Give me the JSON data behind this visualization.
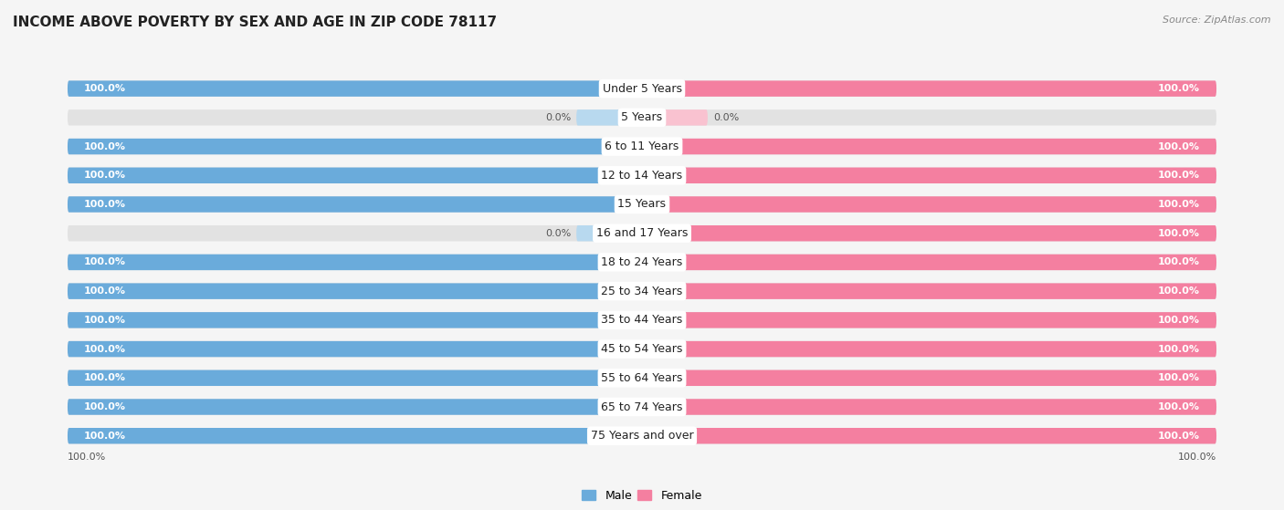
{
  "title": "INCOME ABOVE POVERTY BY SEX AND AGE IN ZIP CODE 78117",
  "source": "Source: ZipAtlas.com",
  "categories": [
    "Under 5 Years",
    "5 Years",
    "6 to 11 Years",
    "12 to 14 Years",
    "15 Years",
    "16 and 17 Years",
    "18 to 24 Years",
    "25 to 34 Years",
    "35 to 44 Years",
    "45 to 54 Years",
    "55 to 64 Years",
    "65 to 74 Years",
    "75 Years and over"
  ],
  "male_values": [
    100.0,
    0.0,
    100.0,
    100.0,
    100.0,
    0.0,
    100.0,
    100.0,
    100.0,
    100.0,
    100.0,
    100.0,
    100.0
  ],
  "female_values": [
    100.0,
    0.0,
    100.0,
    100.0,
    100.0,
    100.0,
    100.0,
    100.0,
    100.0,
    100.0,
    100.0,
    100.0,
    100.0
  ],
  "male_color": "#6aabdb",
  "female_color": "#f47fa0",
  "male_light_color": "#b8d9ef",
  "female_light_color": "#f9c2d0",
  "bar_bg_color": "#e2e2e2",
  "fig_bg_color": "#f5f5f5",
  "title_fontsize": 11,
  "label_fontsize": 9,
  "value_fontsize": 8,
  "legend_fontsize": 9,
  "source_fontsize": 8
}
